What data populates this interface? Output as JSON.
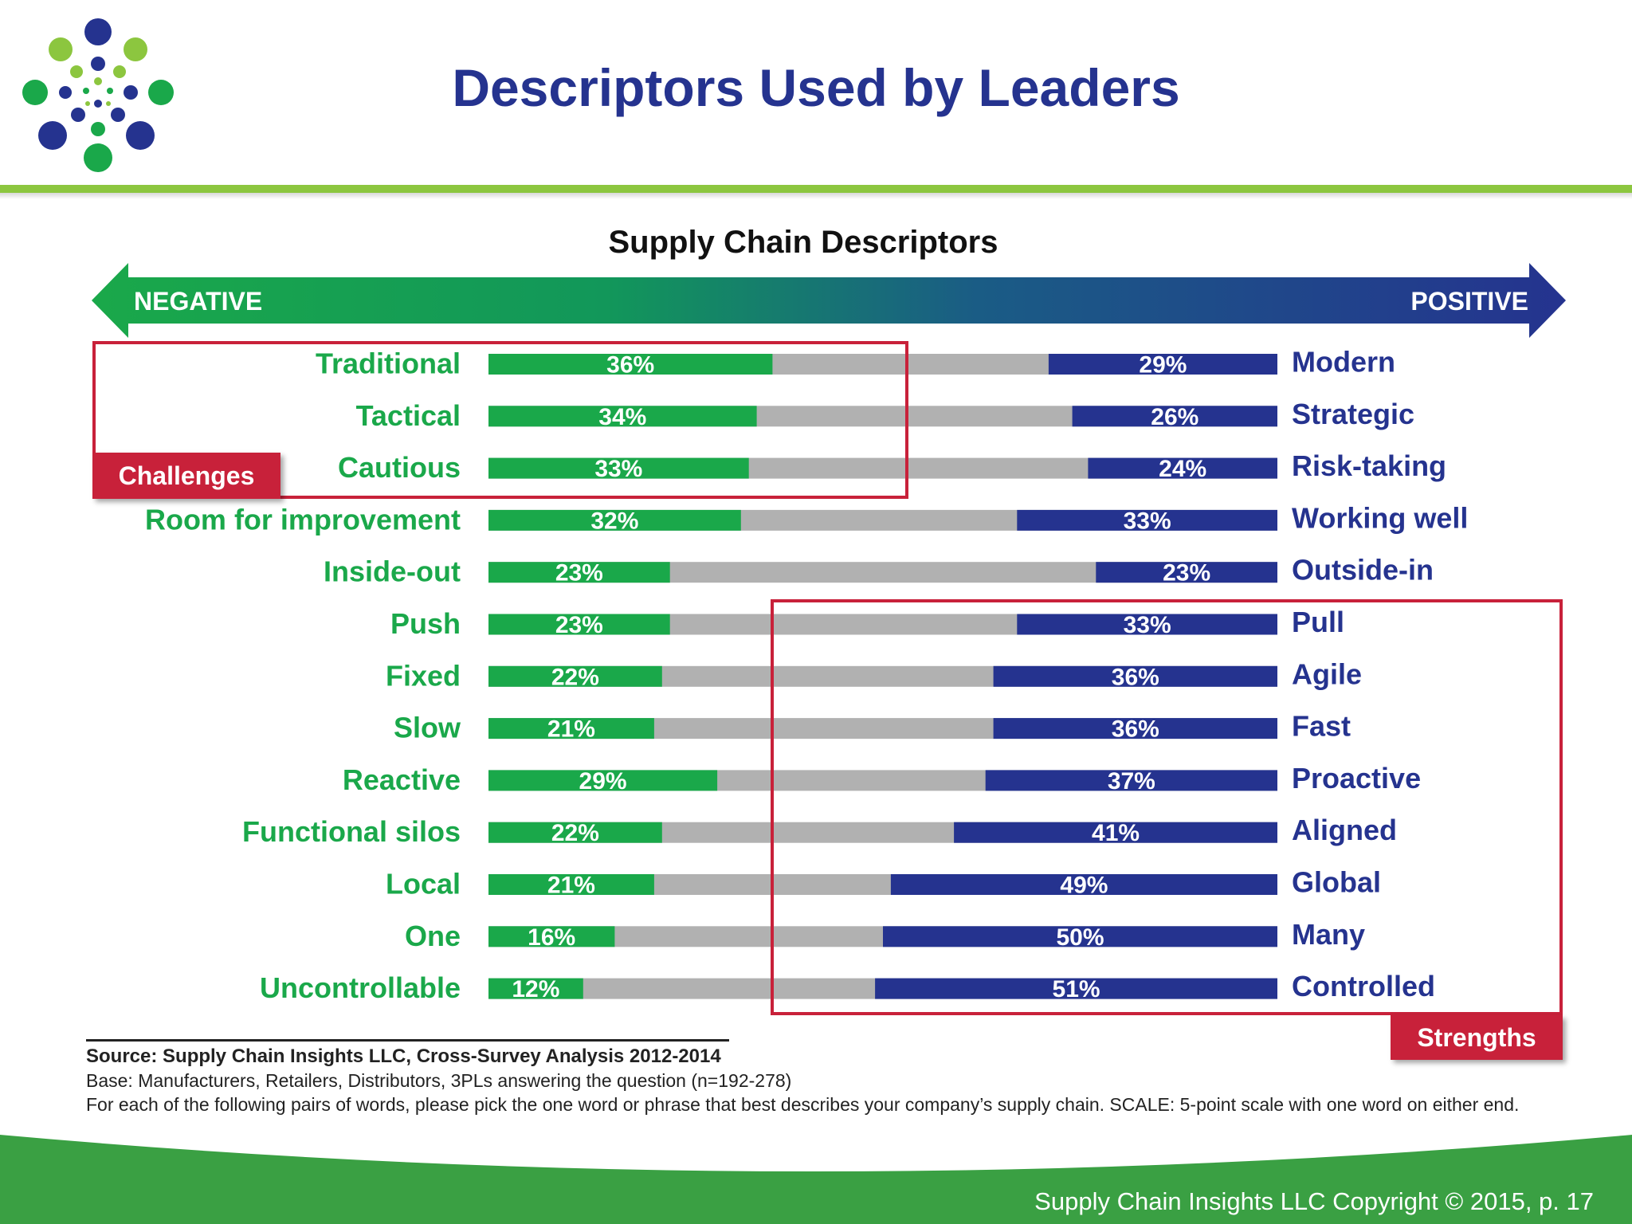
{
  "slide": {
    "title": "Descriptors Used by Leaders",
    "copyright": "Supply Chain Insights LLC Copyright © 2015, p. 17"
  },
  "colors": {
    "title_blue": "#25338f",
    "negative_green": "#1aa84a",
    "positive_blue": "#25338f",
    "neutral_gray": "#b1b1b1",
    "callout_red": "#c8213a",
    "accent_green": "#8cc63f"
  },
  "icons": {
    "logo": "dot-burst-logo-icon"
  },
  "chart_data": {
    "type": "bar",
    "title": "Supply Chain Descriptors",
    "scale": {
      "negative_label": "NEGATIVE",
      "positive_label": "POSITIVE"
    },
    "left_labels": [
      "Traditional",
      "Tactical",
      "Cautious",
      "Room for improvement",
      "Inside-out",
      "Push",
      "Fixed",
      "Slow",
      "Reactive",
      "Functional silos",
      "Local",
      "One",
      "Uncontrollable"
    ],
    "right_labels": [
      "Modern",
      "Strategic",
      "Risk-taking",
      "Working well",
      "Outside-in",
      "Pull",
      "Agile",
      "Fast",
      "Proactive",
      "Aligned",
      "Global",
      "Many",
      "Controlled"
    ],
    "series": [
      {
        "name": "NEGATIVE",
        "values": [
          36,
          34,
          33,
          32,
          23,
          23,
          22,
          21,
          29,
          22,
          21,
          16,
          12
        ]
      },
      {
        "name": "POSITIVE",
        "values": [
          29,
          26,
          24,
          33,
          23,
          33,
          36,
          36,
          37,
          41,
          49,
          50,
          51
        ]
      }
    ],
    "unit": "%",
    "xlim": [
      0,
      100
    ],
    "callouts": {
      "challenges": "Challenges",
      "strengths": "Strengths"
    }
  },
  "source": {
    "line1": "Source:  Supply Chain Insights LLC, Cross-Survey Analysis 2012-2014",
    "line2": "Base:  Manufacturers, Retailers, Distributors, 3PLs answering the question (n=192-278)",
    "line3": "For each of the following pairs of words, please pick the one word or phrase that best describes your company’s supply chain. SCALE: 5-point scale with one word on either end."
  }
}
